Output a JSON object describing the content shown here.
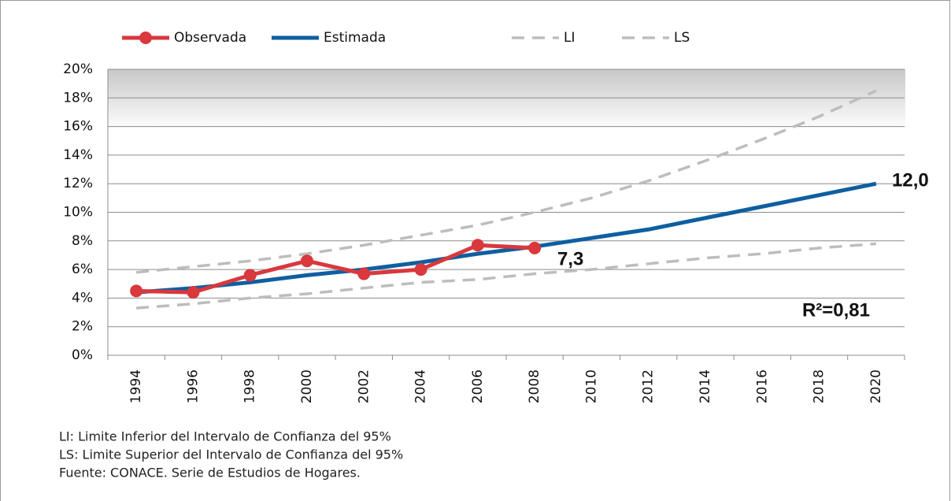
{
  "chart_data": {
    "type": "line",
    "categories": [
      "1994",
      "1996",
      "1998",
      "2000",
      "2002",
      "2004",
      "2006",
      "2008",
      "2010",
      "2012",
      "2014",
      "2016",
      "2018",
      "2020"
    ],
    "series": [
      {
        "name": "Observada",
        "color": "#d9383d",
        "markers": true,
        "dash": false,
        "values": [
          4.5,
          4.4,
          5.6,
          6.6,
          5.7,
          6.0,
          7.7,
          7.5,
          null,
          null,
          null,
          null,
          null,
          null
        ]
      },
      {
        "name": "Estimada",
        "color": "#0e5fa0",
        "markers": false,
        "dash": false,
        "values": [
          4.4,
          4.7,
          5.1,
          5.6,
          6.0,
          6.5,
          7.1,
          7.6,
          8.2,
          8.8,
          9.6,
          10.4,
          11.2,
          12.0
        ]
      },
      {
        "name": "LI",
        "color": "#bdbdbd",
        "markers": false,
        "dash": true,
        "values": [
          3.3,
          3.6,
          4.0,
          4.3,
          4.7,
          5.1,
          5.3,
          5.7,
          6.0,
          6.4,
          6.8,
          7.1,
          7.5,
          7.8
        ]
      },
      {
        "name": "LS",
        "color": "#bdbdbd",
        "markers": false,
        "dash": true,
        "values": [
          5.8,
          6.2,
          6.6,
          7.1,
          7.7,
          8.4,
          9.1,
          10.0,
          11.0,
          12.2,
          13.6,
          15.1,
          16.7,
          18.5
        ]
      }
    ],
    "ylim": [
      0,
      20
    ],
    "yticks": [
      {
        "value": 0,
        "label": "0%"
      },
      {
        "value": 2,
        "label": "2%"
      },
      {
        "value": 4,
        "label": "4%"
      },
      {
        "value": 6,
        "label": "6%"
      },
      {
        "value": 8,
        "label": "8%"
      },
      {
        "value": 10,
        "label": "10%"
      },
      {
        "value": 12,
        "label": "12%"
      },
      {
        "value": 14,
        "label": "14%"
      },
      {
        "value": 16,
        "label": "16%"
      },
      {
        "value": 18,
        "label": "18%"
      },
      {
        "value": 20,
        "label": "20%"
      }
    ],
    "grid": true,
    "annotations": [
      "12,0",
      "7,3",
      "R²=0,81"
    ],
    "notes": [
      "LI: Limite Inferior del Intervalo de Confianza del 95%",
      "LS: Limite Superior del Intervalo de Confianza del 95%",
      "Fuente: CONACE. Serie de Estudios de Hogares."
    ]
  }
}
